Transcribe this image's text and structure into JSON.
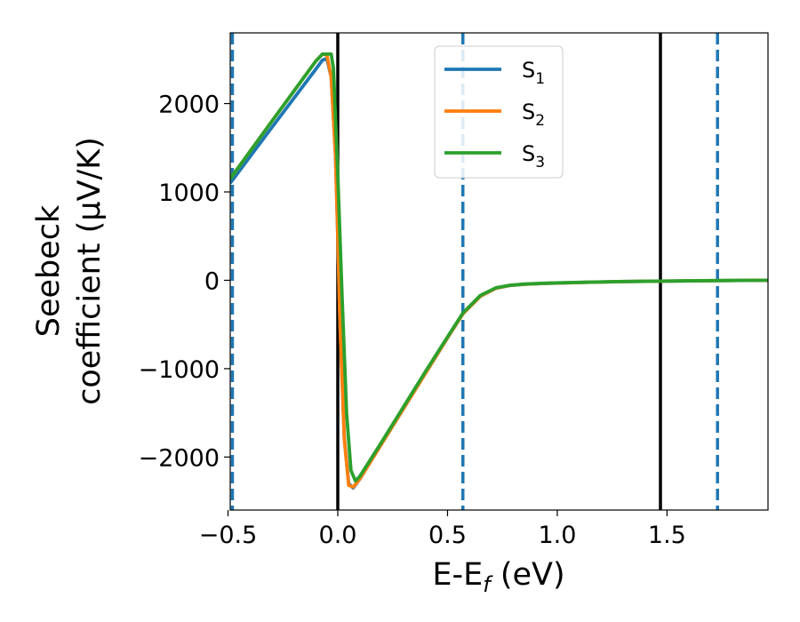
{
  "chart_data": {
    "type": "line",
    "xlabel": "E-E",
    "xlabel_sub": "f",
    "xlabel_unit": " (eV)",
    "ylabel_line1": "Seebeck",
    "ylabel_line2": "coefficient  (μV/K)",
    "xlim": [
      -0.49,
      1.96
    ],
    "ylim": [
      -2600,
      2800
    ],
    "xticks": [
      -0.5,
      0.0,
      0.5,
      1.0,
      1.5
    ],
    "xtick_labels": [
      "−0.5",
      "0.0",
      "0.5",
      "1.0",
      "1.5"
    ],
    "yticks": [
      -2000,
      -1000,
      0,
      1000,
      2000
    ],
    "ytick_labels": [
      "−2000",
      "−1000",
      "0",
      "1000",
      "2000"
    ],
    "grid": false,
    "legend_position": "top-center",
    "series": [
      {
        "name": "S",
        "sub": "1",
        "color": "#1f77b4",
        "x": [
          -0.49,
          -0.3,
          -0.1,
          -0.07,
          -0.05,
          -0.03,
          -0.01,
          0.0,
          0.01,
          0.03,
          0.05,
          0.07,
          0.1,
          0.2,
          0.3,
          0.4,
          0.5,
          0.57,
          0.65,
          0.72,
          0.78,
          0.85,
          0.95,
          1.1,
          1.3,
          1.5,
          1.7,
          1.96
        ],
        "y": [
          1100,
          1730,
          2390,
          2490,
          2510,
          2300,
          1400,
          500,
          -500,
          -1800,
          -2300,
          -2350,
          -2250,
          -1850,
          -1450,
          -1050,
          -650,
          -380,
          -180,
          -90,
          -60,
          -45,
          -35,
          -25,
          -15,
          -10,
          -5,
          0
        ]
      },
      {
        "name": "S",
        "sub": "2",
        "color": "#ff7f0e",
        "x": [
          -0.49,
          -0.3,
          -0.1,
          -0.07,
          -0.05,
          -0.03,
          -0.01,
          0.0,
          0.01,
          0.03,
          0.05,
          0.07,
          0.1,
          0.2,
          0.3,
          0.4,
          0.5,
          0.57,
          0.65,
          0.72,
          0.78,
          0.85,
          0.95,
          1.1,
          1.3,
          1.5,
          1.7,
          1.96
        ],
        "y": [
          1150,
          1800,
          2480,
          2560,
          2550,
          2300,
          1400,
          500,
          -500,
          -1800,
          -2320,
          -2340,
          -2250,
          -1850,
          -1450,
          -1050,
          -650,
          -380,
          -180,
          -90,
          -60,
          -45,
          -35,
          -25,
          -15,
          -10,
          -5,
          0
        ]
      },
      {
        "name": "S",
        "sub": "3",
        "color": "#2ca02c",
        "x": [
          -0.49,
          -0.3,
          -0.1,
          -0.07,
          -0.05,
          -0.03,
          -0.02,
          0.0,
          0.02,
          0.04,
          0.06,
          0.08,
          0.1,
          0.2,
          0.3,
          0.4,
          0.5,
          0.57,
          0.65,
          0.72,
          0.78,
          0.85,
          0.95,
          1.1,
          1.3,
          1.5,
          1.7,
          1.96
        ],
        "y": [
          1150,
          1800,
          2480,
          2560,
          2560,
          2560,
          2400,
          1200,
          -200,
          -1500,
          -2150,
          -2270,
          -2220,
          -1830,
          -1430,
          -1030,
          -640,
          -370,
          -170,
          -85,
          -58,
          -43,
          -33,
          -24,
          -14,
          -9,
          -4,
          0
        ]
      }
    ],
    "vlines": [
      {
        "x": -0.48,
        "style": "dashed",
        "color": "#1f77b4"
      },
      {
        "x": 0.0,
        "style": "solid",
        "color": "#000000"
      },
      {
        "x": 0.57,
        "style": "dashed",
        "color": "#1f77b4"
      },
      {
        "x": 1.47,
        "style": "solid",
        "color": "#000000"
      },
      {
        "x": 1.73,
        "style": "dashed",
        "color": "#1f77b4"
      }
    ]
  }
}
